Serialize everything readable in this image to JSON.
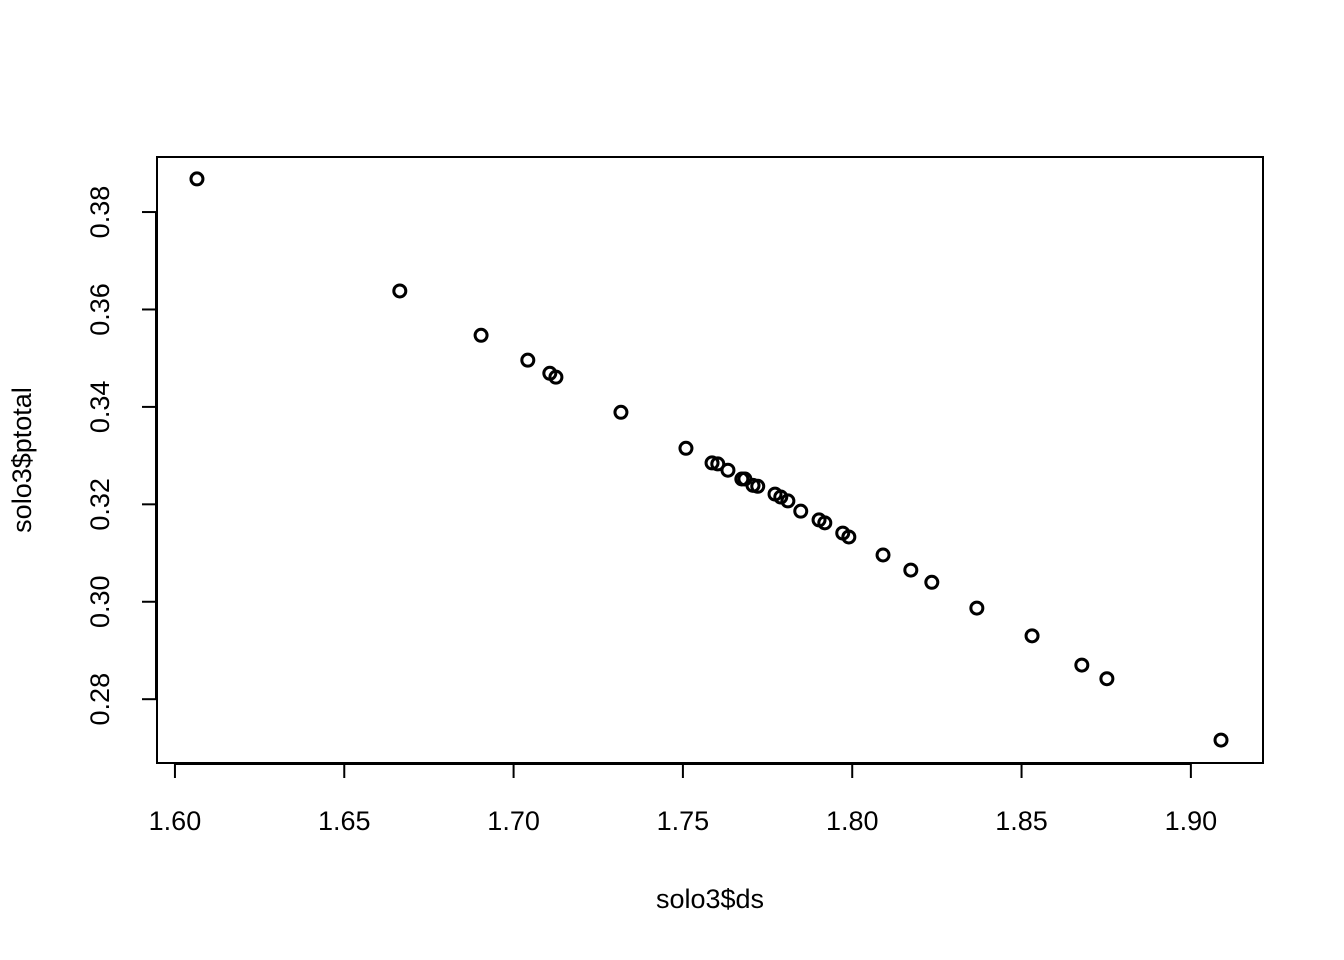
{
  "chart_data": {
    "type": "scatter",
    "x_label": "solo3$ds",
    "y_label": "solo3$ptotal",
    "x": [
      1.6065,
      1.6664,
      1.6904,
      1.7042,
      1.7107,
      1.7125,
      1.7317,
      1.7509,
      1.7586,
      1.7603,
      1.7633,
      1.7674,
      1.7683,
      1.7707,
      1.7721,
      1.7772,
      1.7789,
      1.781,
      1.7848,
      1.7902,
      1.7919,
      1.7972,
      1.799,
      1.8091,
      1.8173,
      1.8235,
      1.8368,
      1.8531,
      1.8678,
      1.8752,
      1.9089
    ],
    "values": [
      0.3868,
      0.3638,
      0.3547,
      0.3496,
      0.3469,
      0.3461,
      0.3389,
      0.3315,
      0.3285,
      0.3283,
      0.327,
      0.3252,
      0.3252,
      0.3239,
      0.3237,
      0.3221,
      0.3215,
      0.3207,
      0.3186,
      0.3168,
      0.3162,
      0.3141,
      0.3133,
      0.3096,
      0.3065,
      0.304,
      0.2987,
      0.293,
      0.287,
      0.2842,
      0.2716
    ],
    "color": "#000000",
    "xlim": [
      1.5947,
      1.9213
    ],
    "ylim": [
      0.2669,
      0.3913
    ],
    "xticks": [
      {
        "value": 1.6,
        "label": "1.60"
      },
      {
        "value": 1.65,
        "label": "1.65"
      },
      {
        "value": 1.7,
        "label": "1.70"
      },
      {
        "value": 1.75,
        "label": "1.75"
      },
      {
        "value": 1.8,
        "label": "1.80"
      },
      {
        "value": 1.85,
        "label": "1.85"
      },
      {
        "value": 1.9,
        "label": "1.90"
      }
    ],
    "yticks": [
      {
        "value": 0.28,
        "label": "0.28"
      },
      {
        "value": 0.3,
        "label": "0.30"
      },
      {
        "value": 0.32,
        "label": "0.32"
      },
      {
        "value": 0.34,
        "label": "0.34"
      },
      {
        "value": 0.36,
        "label": "0.36"
      },
      {
        "value": 0.38,
        "label": "0.38"
      }
    ],
    "grid": false
  }
}
